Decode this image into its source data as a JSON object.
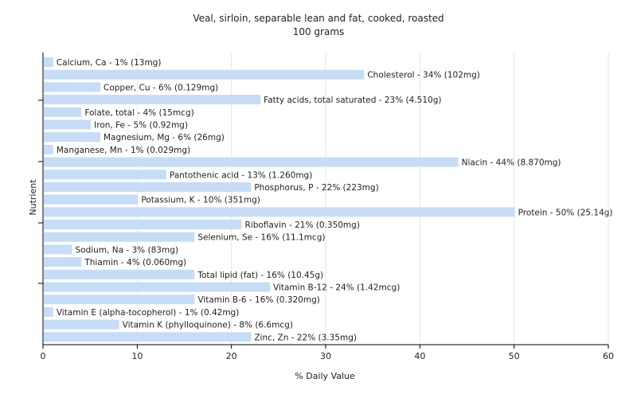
{
  "chart_data": {
    "type": "bar",
    "orientation": "horizontal",
    "title": "Veal, sirloin, separable lean and fat, cooked, roasted",
    "subtitle": "100 grams",
    "xlabel": "% Daily Value",
    "ylabel": "Nutrient",
    "xlim": [
      0,
      60
    ],
    "xticks": [
      0,
      10,
      20,
      30,
      40,
      50,
      60
    ],
    "grid": true,
    "bar_color": "#c6dcf7",
    "categories": [
      "Calcium, Ca",
      "Cholesterol",
      "Copper, Cu",
      "Fatty acids, total saturated",
      "Folate, total",
      "Iron, Fe",
      "Magnesium, Mg",
      "Manganese, Mn",
      "Niacin",
      "Pantothenic acid",
      "Phosphorus, P",
      "Potassium, K",
      "Protein",
      "Riboflavin",
      "Selenium, Se",
      "Sodium, Na",
      "Thiamin",
      "Total lipid (fat)",
      "Vitamin B-12",
      "Vitamin B-6",
      "Vitamin E (alpha-tocopherol)",
      "Vitamin K (phylloquinone)",
      "Zinc, Zn"
    ],
    "values": [
      1,
      34,
      6,
      23,
      4,
      5,
      6,
      1,
      44,
      13,
      22,
      10,
      50,
      21,
      16,
      3,
      4,
      16,
      24,
      16,
      1,
      8,
      22
    ],
    "labels": [
      "Calcium, Ca - 1% (13mg)",
      "Cholesterol - 34% (102mg)",
      "Copper, Cu - 6% (0.129mg)",
      "Fatty acids, total saturated - 23% (4.510g)",
      "Folate, total - 4% (15mcg)",
      "Iron, Fe - 5% (0.92mg)",
      "Magnesium, Mg - 6% (26mg)",
      "Manganese, Mn - 1% (0.029mg)",
      "Niacin - 44% (8.870mg)",
      "Pantothenic acid - 13% (1.260mg)",
      "Phosphorus, P - 22% (223mg)",
      "Potassium, K - 10% (351mg)",
      "Protein - 50% (25.14g)",
      "Riboflavin - 21% (0.350mg)",
      "Selenium, Se - 16% (11.1mcg)",
      "Sodium, Na - 3% (83mg)",
      "Thiamin - 4% (0.060mg)",
      "Total lipid (fat) - 16% (10.45g)",
      "Vitamin B-12 - 24% (1.42mcg)",
      "Vitamin B-6 - 16% (0.320mg)",
      "Vitamin E (alpha-tocopherol) - 1% (0.42mg)",
      "Vitamin K (phylloquinone) - 8% (6.6mcg)",
      "Zinc, Zn - 22% (3.35mg)"
    ]
  }
}
